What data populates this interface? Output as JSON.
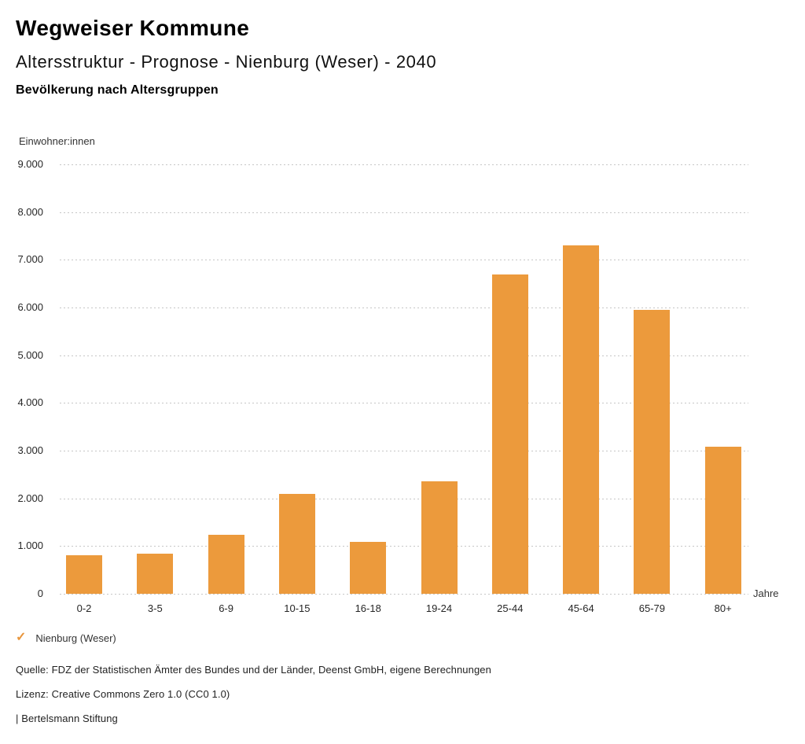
{
  "header": {
    "brand": "Wegweiser Kommune",
    "title": "Altersstruktur - Prognose - Nienburg (Weser) - 2040",
    "subtitle": "Bevölkerung nach Altersgruppen"
  },
  "chart_data": {
    "type": "bar",
    "title": "Bevölkerung nach Altersgruppen",
    "ylabel": "Einwohner:innen",
    "xlabel": "Jahre",
    "categories": [
      "0-2",
      "3-5",
      "6-9",
      "10-15",
      "16-18",
      "19-24",
      "25-44",
      "45-64",
      "65-79",
      "80+"
    ],
    "series": [
      {
        "name": "Nienburg (Weser)",
        "values": [
          800,
          840,
          1230,
          2090,
          1090,
          2350,
          6700,
          7310,
          5950,
          3080
        ]
      }
    ],
    "ylim": [
      0,
      9000
    ],
    "ytick_step": 1000,
    "ytick_labels": [
      "0",
      "1.000",
      "2.000",
      "3.000",
      "4.000",
      "5.000",
      "6.000",
      "7.000",
      "8.000",
      "9.000"
    ],
    "grid": "horizontal-dotted",
    "legend_position": "bottom-left",
    "bar_color": "#EC9A3C"
  },
  "legend": {
    "check_glyph": "✓",
    "label": "Nienburg (Weser)",
    "color": "#E8963C"
  },
  "footer": {
    "source": "Quelle: FDZ der Statistischen Ämter des Bundes und der Länder, Deenst GmbH, eigene Berechnungen",
    "license": "Lizenz: Creative Commons Zero 1.0 (CC0 1.0)",
    "attribution": "| Bertelsmann Stiftung"
  }
}
